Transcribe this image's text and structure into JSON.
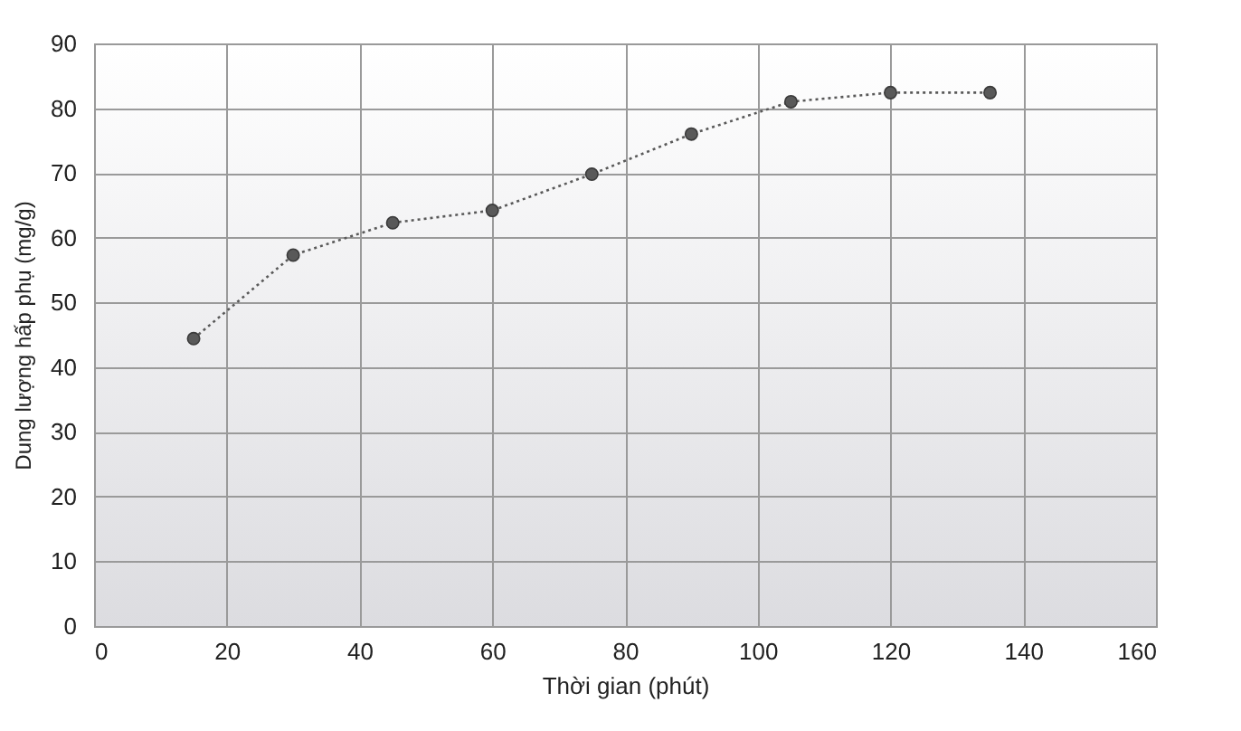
{
  "chart_data": {
    "type": "line",
    "xlabel": "Thời gian (phút)",
    "ylabel": "Dung lượng hấp phụ (mg/g)",
    "x": [
      15,
      30,
      45,
      60,
      75,
      90,
      105,
      120,
      135
    ],
    "series": [
      {
        "color": "#595959",
        "values": [
          44.4,
          57.3,
          62.3,
          64.2,
          69.8,
          76.0,
          81.0,
          82.4,
          82.4
        ]
      }
    ],
    "xlim": [
      0,
      160
    ],
    "xticks": [
      0,
      20,
      40,
      60,
      80,
      100,
      120,
      140,
      160
    ],
    "ylim": [
      0,
      90
    ],
    "yticks": [
      0,
      10,
      20,
      30,
      40,
      50,
      60,
      70,
      80,
      90
    ],
    "grid": true,
    "marker": "circle",
    "line_style": "dotted"
  }
}
